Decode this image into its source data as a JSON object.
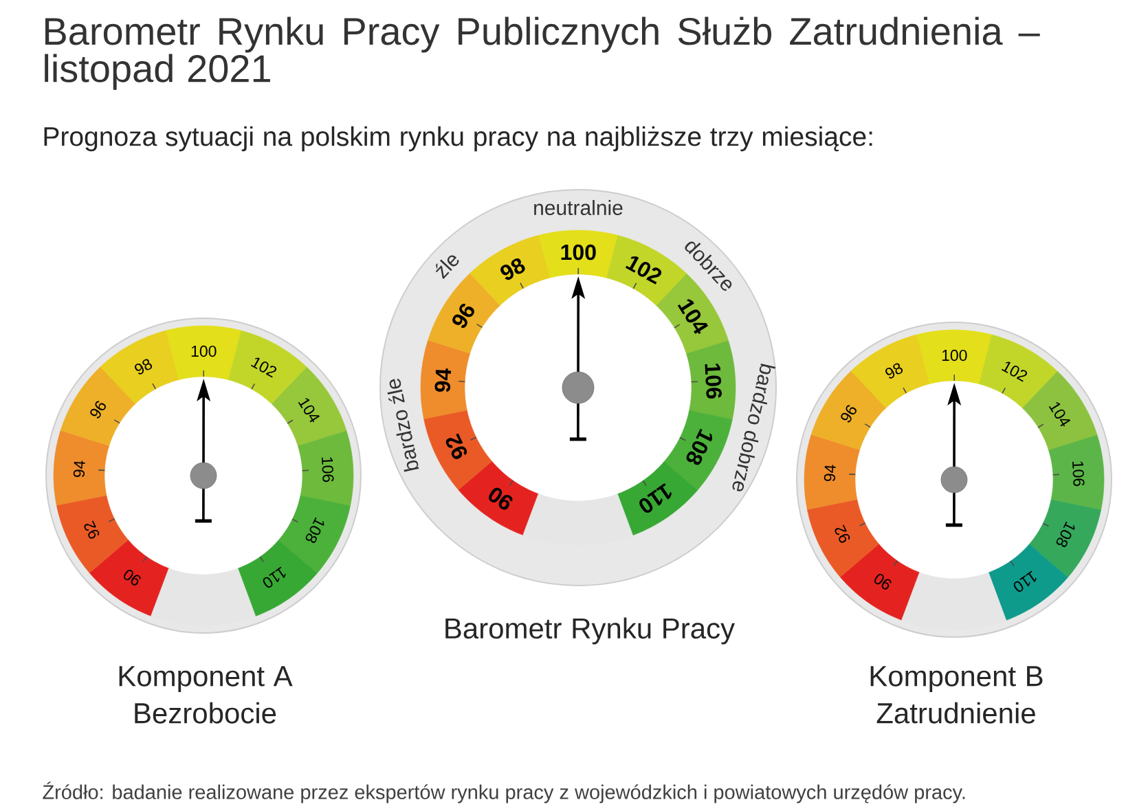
{
  "chart_data": [
    {
      "type": "donut",
      "title": "Barometr Rynku Pracy Publicznych Służb Zatrudnienia – listopad 2021",
      "subtitle": "Prognoza sytuacji na polskim rynku pracy na najbliższe trzy miesiące:",
      "xlabel": "Komponent A Bezrobocie",
      "categories": [
        "90",
        "92",
        "94",
        "96",
        "98",
        "100",
        "102",
        "104",
        "106",
        "108",
        "110",
        null
      ],
      "values": [
        8.06,
        8.06,
        8.06,
        8.06,
        8.06,
        8.06,
        8.06,
        8.06,
        8.06,
        8.06,
        8.06,
        11.34
      ],
      "colors": [
        "#e42320",
        "#ea5a26",
        "#ef8c2c",
        "#eeb028",
        "#e9cf1f",
        "#e3df1a",
        "#c2d62a",
        "#97c73a",
        "#6dba3d",
        "#4cb13a",
        "#38a834",
        "#e6e6e6"
      ],
      "needle": "100",
      "annotations": [
        "Źródło: badanie realizowane przez ekspertów rynku pracy z wojewódzkich i powiatowych urzędów pracy."
      ]
    },
    {
      "type": "donut",
      "xlabel": "Barometr Rynku Pracy",
      "categories": [
        "90",
        "92",
        "94",
        "96",
        "98",
        "100",
        "102",
        "104",
        "106",
        "108",
        "110",
        null
      ],
      "values": [
        8.06,
        8.06,
        8.06,
        8.06,
        8.06,
        8.06,
        8.06,
        8.06,
        8.06,
        8.06,
        8.06,
        11.34
      ],
      "colors": [
        "#e42320",
        "#ea5a26",
        "#ef8c2c",
        "#eeb028",
        "#e9cf1f",
        "#e3df1a",
        "#c2d62a",
        "#97c73a",
        "#6dba3d",
        "#4cb13a",
        "#38a834",
        "#e6e6e6"
      ],
      "needle": "100",
      "annotations": [
        "bardzo źle",
        "źle",
        "neutralnie",
        "dobrze",
        "bardzo dobrze"
      ]
    },
    {
      "type": "donut",
      "xlabel": "Komponent B Zatrudnienie",
      "categories": [
        "90",
        "92",
        "94",
        "96",
        "98",
        "100",
        "102",
        "104",
        "106",
        "108",
        "110",
        null
      ],
      "values": [
        8.06,
        8.06,
        8.06,
        8.06,
        8.06,
        8.06,
        8.06,
        8.06,
        8.06,
        8.06,
        8.06,
        11.34
      ],
      "colors": [
        "#e42320",
        "#ea5a26",
        "#ef8c2c",
        "#eeb028",
        "#e9cf1f",
        "#e3df1a",
        "#c2d62a",
        "#8cc23f",
        "#5cb548",
        "#35a85c",
        "#0e9b8c",
        "#e6e6e6"
      ],
      "needle": "100"
    }
  ]
}
